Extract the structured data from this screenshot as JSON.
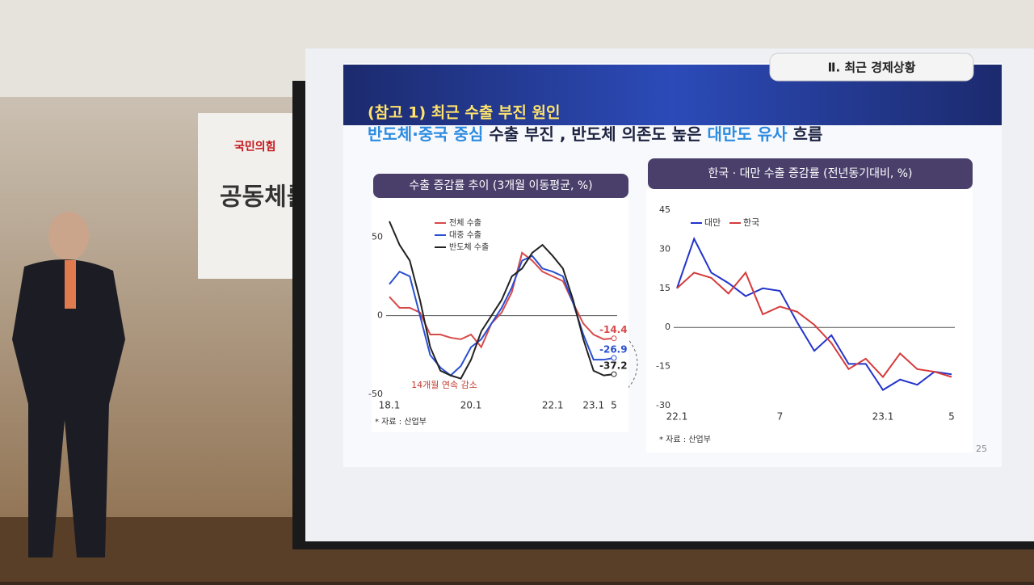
{
  "room": {
    "sign_logo": "국민의힘",
    "sign_text": "공동체를"
  },
  "slide": {
    "section": "Ⅱ. 최근 경제상황",
    "title": "(참고 1) 최근 수출 부진 원인",
    "headline": [
      {
        "text": "반도체·중국 중심",
        "color": "#2b8be0"
      },
      {
        "text": " 수출 부진 , 반도체 의존도 높은 ",
        "color": "#1c2240"
      },
      {
        "text": "대만도 유사",
        "color": "#2b8be0"
      },
      {
        "text": " 흐름",
        "color": "#1c2240"
      }
    ],
    "page": 25
  },
  "chart_data": [
    {
      "type": "line",
      "title": "수출 증감률 추이 (3개월 이동평균, %)",
      "categories": [
        "18.1",
        null,
        null,
        null,
        null,
        null,
        null,
        null,
        "20.1",
        null,
        null,
        null,
        null,
        null,
        null,
        null,
        "22.1",
        null,
        null,
        null,
        "23.1",
        null,
        "5"
      ],
      "series": [
        {
          "name": "전체 수출",
          "color": "#d84a4a",
          "values": [
            12,
            5,
            5,
            2,
            -12,
            -12,
            -14,
            -15,
            -12,
            -20,
            -5,
            2,
            15,
            40,
            35,
            28,
            25,
            22,
            8,
            -5,
            -12,
            -15,
            -14.4
          ]
        },
        {
          "name": "대중 수출",
          "color": "#2a4fd0",
          "values": [
            20,
            28,
            25,
            0,
            -25,
            -33,
            -38,
            -32,
            -20,
            -15,
            -5,
            5,
            18,
            35,
            38,
            30,
            28,
            25,
            8,
            -12,
            -28,
            -28,
            -26.9
          ]
        },
        {
          "name": "반도체 수출",
          "color": "#222222",
          "values": [
            60,
            45,
            35,
            10,
            -20,
            -35,
            -38,
            -40,
            -28,
            -10,
            0,
            10,
            25,
            30,
            40,
            45,
            38,
            30,
            10,
            -15,
            -35,
            -38,
            -37.2
          ]
        }
      ],
      "ylim": [
        -50,
        62
      ],
      "yticks": [
        -50,
        0,
        50
      ],
      "annotation": "14개월 연속 감소",
      "source": "* 자료 : 산업부",
      "legend": "top-left"
    },
    {
      "type": "line",
      "title": "한국 · 대만 수출 증감률 (전년동기대비, %)",
      "categories": [
        "22.1",
        null,
        null,
        null,
        null,
        null,
        "7",
        null,
        null,
        null,
        null,
        null,
        "23.1",
        null,
        null,
        null,
        "5"
      ],
      "series": [
        {
          "name": "대만",
          "color": "#2233cc",
          "values": [
            15,
            34,
            21,
            17,
            12,
            15,
            14,
            2,
            -9,
            -3,
            -14,
            -14,
            -24,
            -20,
            -22,
            -17,
            -18
          ]
        },
        {
          "name": "한국",
          "color": "#d63a3a",
          "values": [
            15,
            21,
            19,
            13,
            21,
            5,
            8,
            6,
            1,
            -6,
            -16,
            -12,
            -19,
            -10,
            -16,
            -17,
            -19
          ]
        }
      ],
      "ylim": [
        -30,
        45
      ],
      "yticks": [
        -30,
        -15,
        0,
        15,
        30,
        45
      ],
      "source": "* 자료 : 산업부",
      "legend": "top-left"
    }
  ]
}
